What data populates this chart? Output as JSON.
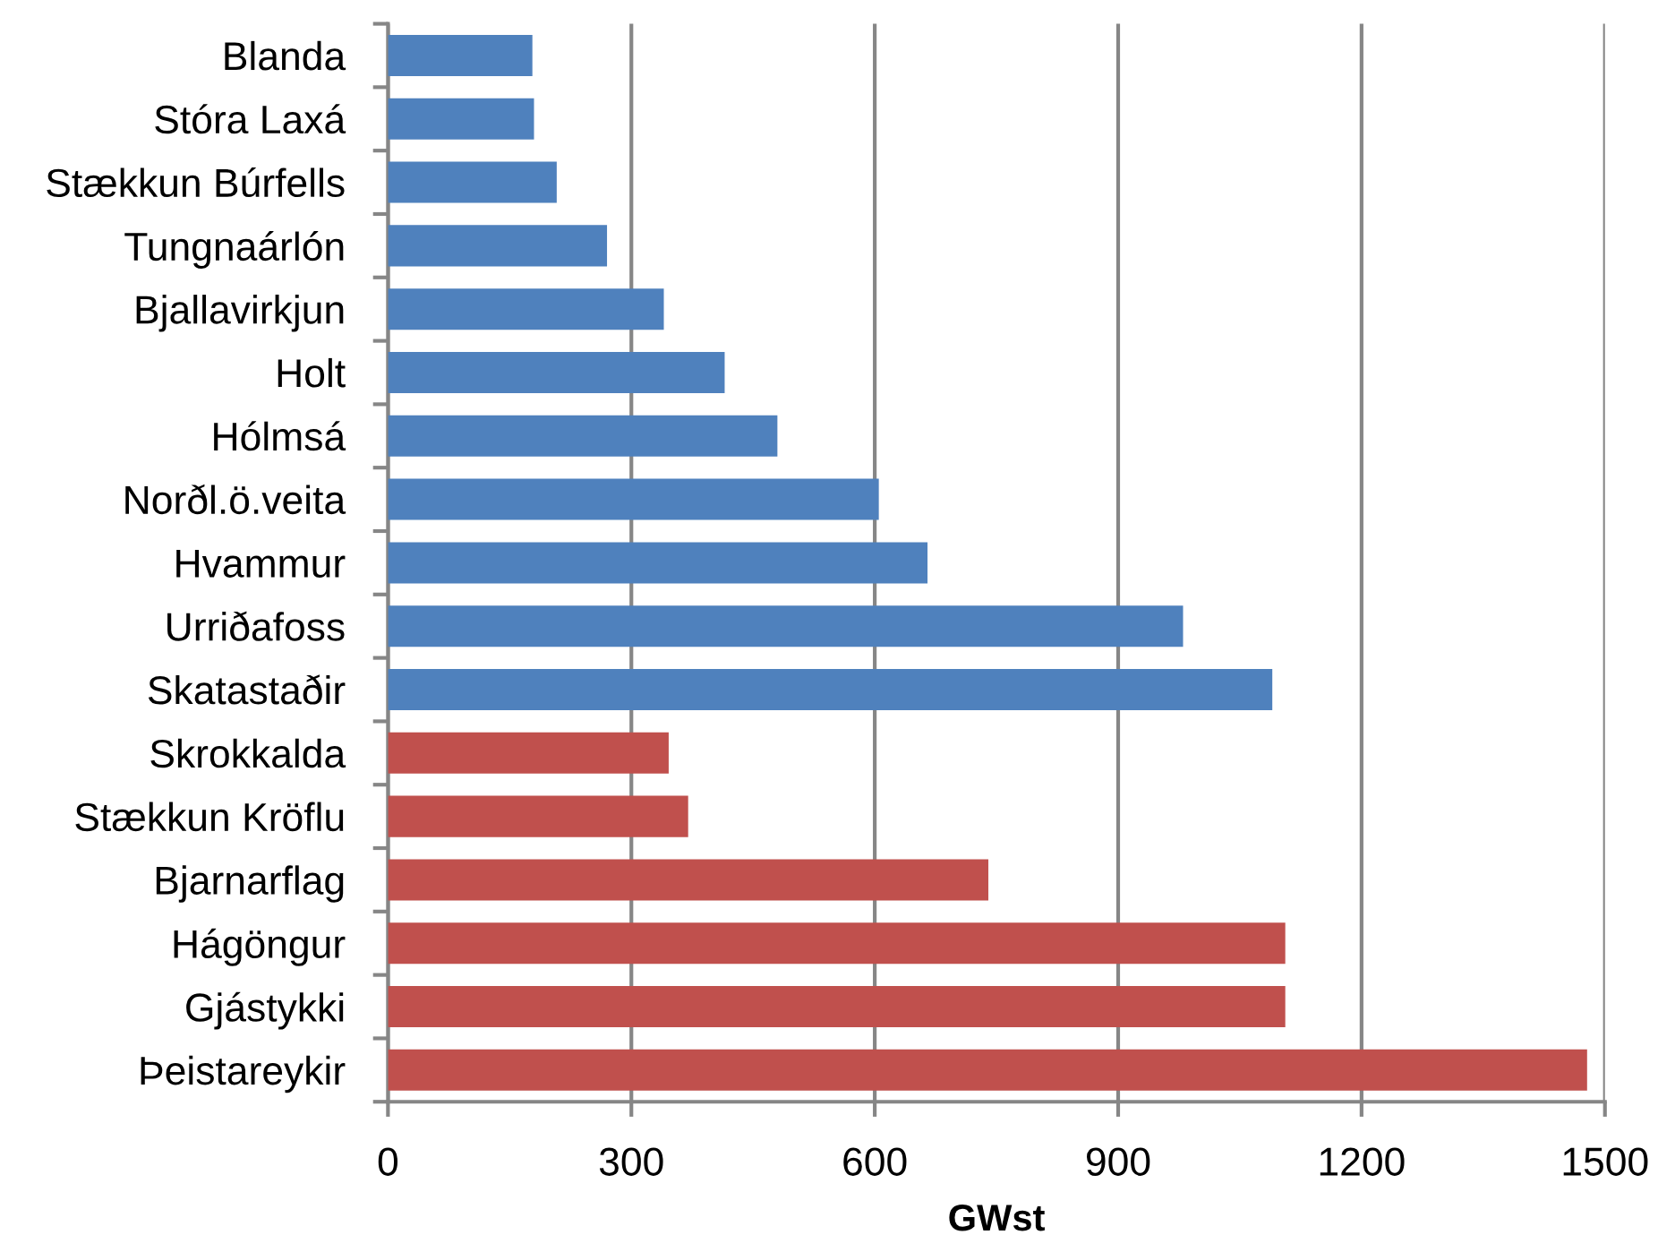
{
  "chart_data": {
    "type": "bar",
    "orientation": "horizontal",
    "xlabel": "GWst",
    "categories": [
      "Blanda",
      "Stóra Laxá",
      "Stækkun Búrfells",
      "Tungnaárlón",
      "Bjallavirkjun",
      "Holt",
      "Hólmsá",
      "Norðl.ö.veita",
      "Hvammur",
      "Urriðafoss",
      "Skatastaðir",
      "Skrokkalda",
      "Stækkun Kröflu",
      "Bjarnarflag",
      "Hágöngur",
      "Gjástykki",
      "Þeistareykir"
    ],
    "values": [
      178,
      180,
      208,
      270,
      340,
      415,
      480,
      605,
      665,
      980,
      1090,
      346,
      370,
      740,
      1106,
      1106,
      1478
    ],
    "colors": [
      "#4f81bd",
      "#4f81bd",
      "#4f81bd",
      "#4f81bd",
      "#4f81bd",
      "#4f81bd",
      "#4f81bd",
      "#4f81bd",
      "#4f81bd",
      "#4f81bd",
      "#4f81bd",
      "#c0504d",
      "#c0504d",
      "#c0504d",
      "#c0504d",
      "#c0504d",
      "#c0504d"
    ],
    "xlim": [
      0,
      1500
    ],
    "xticks": [
      0,
      300,
      600,
      900,
      1200,
      1500
    ],
    "grid": "x",
    "legend": false
  }
}
